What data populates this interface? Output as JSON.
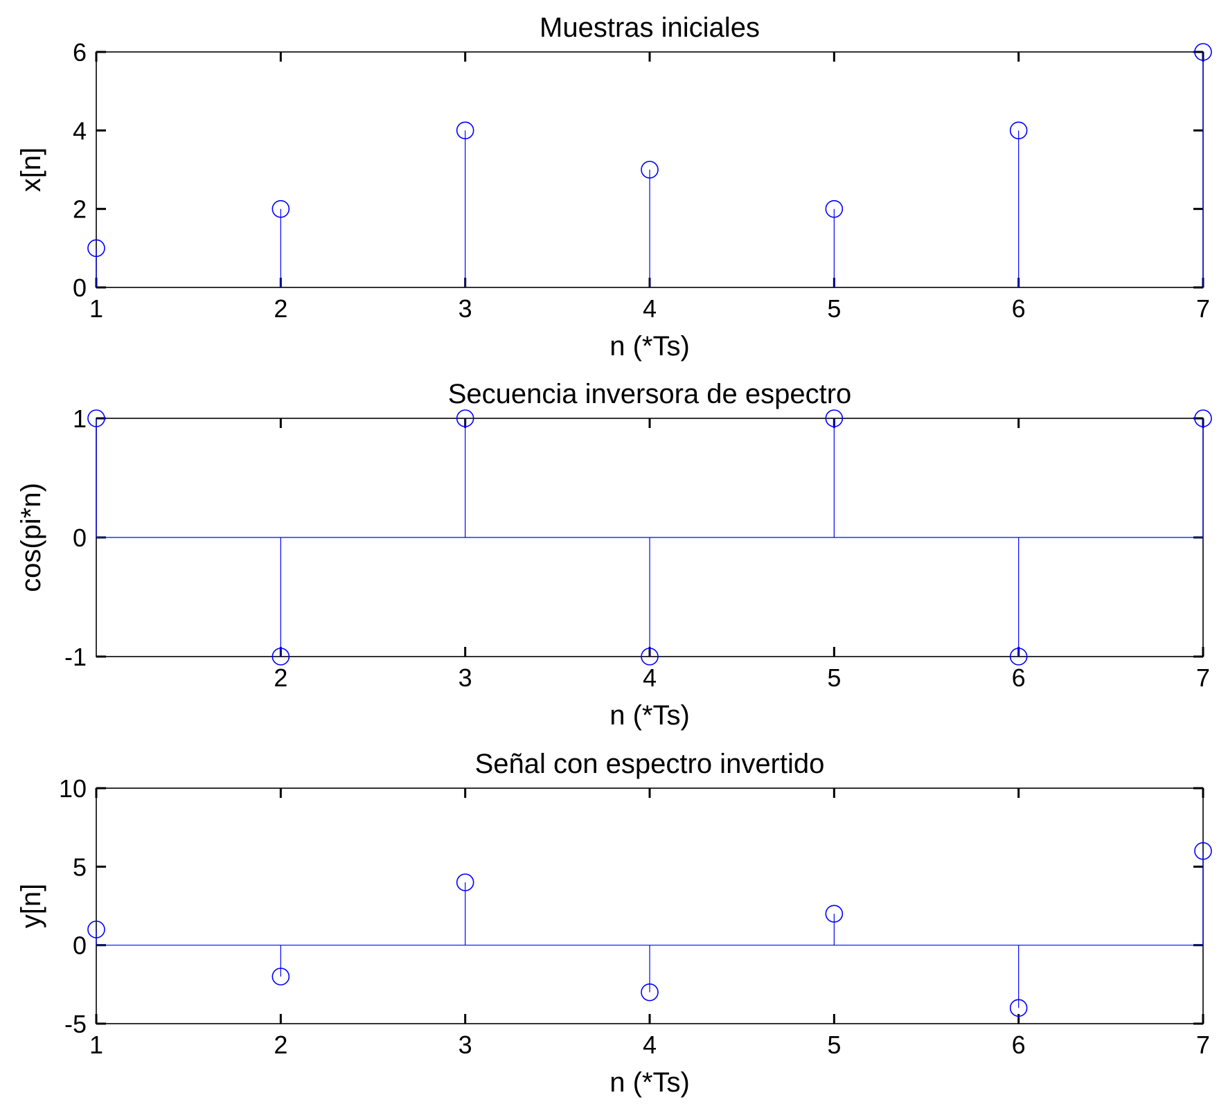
{
  "chart_data": [
    {
      "type": "stem",
      "title": "Muestras iniciales",
      "xlabel": "n (*Ts)",
      "ylabel": "x[n]",
      "x": [
        1,
        2,
        3,
        4,
        5,
        6,
        7
      ],
      "values": [
        1,
        2,
        4,
        3,
        2,
        4,
        6
      ],
      "xlim": [
        1,
        7
      ],
      "ylim": [
        0,
        6
      ],
      "xticks": [
        "1",
        "2",
        "3",
        "4",
        "5",
        "6",
        "7"
      ],
      "yticks": [
        "0",
        "2",
        "4",
        "6"
      ],
      "color": "#0000ff",
      "grid": false
    },
    {
      "type": "stem",
      "title": "Secuencia inversora de espectro",
      "xlabel": "n (*Ts)",
      "ylabel": "cos(pi*n)",
      "x": [
        1,
        2,
        3,
        4,
        5,
        6,
        7
      ],
      "values": [
        1,
        -1,
        1,
        -1,
        1,
        -1,
        1
      ],
      "xlim": [
        1,
        7
      ],
      "ylim": [
        -1,
        1
      ],
      "xticks": [
        "2",
        "3",
        "4",
        "5",
        "6",
        "7"
      ],
      "yticks": [
        "-1",
        "0",
        "1"
      ],
      "color": "#0000ff",
      "grid": false
    },
    {
      "type": "stem",
      "title": "Señal con espectro invertido",
      "xlabel": "n (*Ts)",
      "ylabel": "y[n]",
      "x": [
        1,
        2,
        3,
        4,
        5,
        6,
        7
      ],
      "values": [
        1,
        -2,
        4,
        -3,
        2,
        -4,
        6
      ],
      "xlim": [
        1,
        7
      ],
      "ylim": [
        -5,
        10
      ],
      "xticks": [
        "1",
        "2",
        "3",
        "4",
        "5",
        "6",
        "7"
      ],
      "yticks": [
        "-5",
        "0",
        "5",
        "10"
      ],
      "color": "#0000ff",
      "grid": false
    }
  ]
}
